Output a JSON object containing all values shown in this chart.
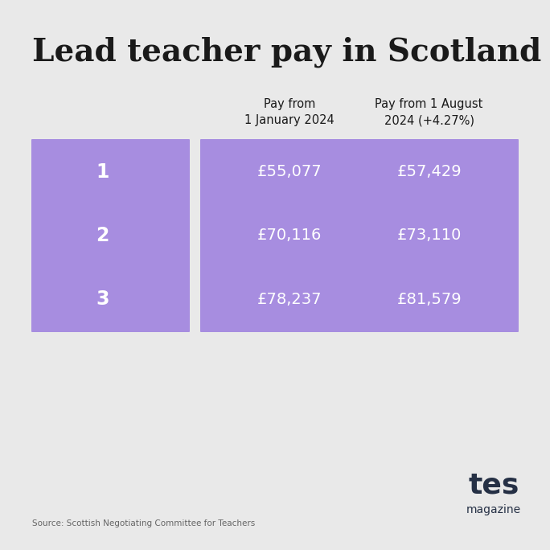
{
  "title": "Lead teacher pay in Scotland",
  "background_color": "#e9e9e9",
  "purple_color": "#a78de0",
  "white_text": "#ffffff",
  "dark_text": "#1a1a1a",
  "header_col1": "Pay from\n1 January 2024",
  "header_col2": "Pay from 1 August\n2024 (+4.27%)",
  "rows": [
    {
      "grade": "1",
      "jan2024": "£55,077",
      "aug2024": "£57,429"
    },
    {
      "grade": "2",
      "jan2024": "£70,116",
      "aug2024": "£73,110"
    },
    {
      "grade": "3",
      "jan2024": "£78,237",
      "aug2024": "£81,579"
    }
  ],
  "source_text": "Source: Scottish Negotiating Committee for Teachers",
  "logo_tes": "tes",
  "logo_magazine": "magazine",
  "logo_color": "#253045",
  "title_fontsize": 28,
  "header_fontsize": 10.5,
  "grade_fontsize": 17,
  "value_fontsize": 14,
  "source_fontsize": 7.5,
  "logo_tes_fontsize": 26,
  "logo_mag_fontsize": 10
}
